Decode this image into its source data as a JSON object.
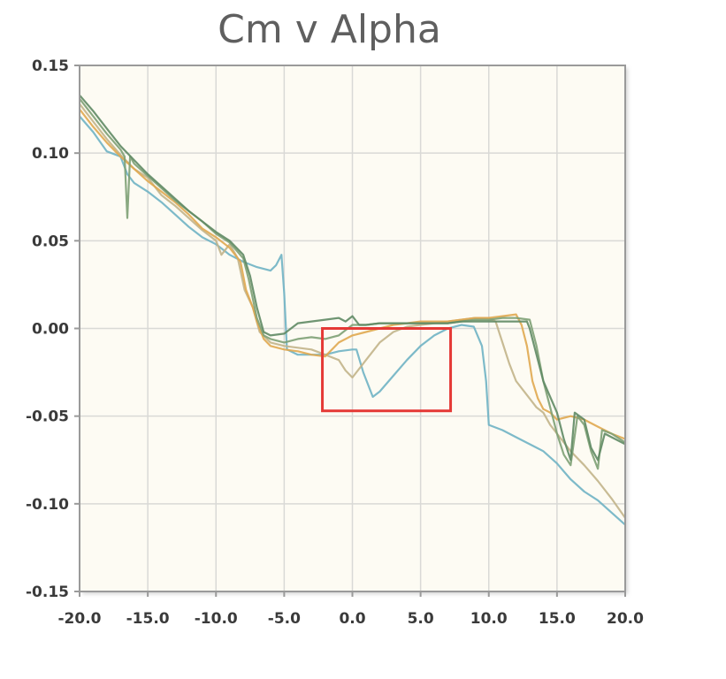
{
  "chart_data": {
    "type": "line",
    "title": "Cm v Alpha",
    "xlabel": "",
    "ylabel": "",
    "xlim": [
      -20,
      20
    ],
    "ylim": [
      -0.15,
      0.15
    ],
    "x_ticks": [
      "-20.0",
      "-15.0",
      "-10.0",
      "-5.0",
      "0.0",
      "5.0",
      "10.0",
      "15.0",
      "20.0"
    ],
    "y_ticks": [
      "0.15",
      "0.10",
      "0.05",
      "0.00",
      "-0.05",
      "-0.10",
      "-0.15"
    ],
    "x_tick_values": [
      -20,
      -15,
      -10,
      -5,
      0,
      5,
      10,
      15,
      20
    ],
    "y_tick_values": [
      0.15,
      0.1,
      0.05,
      0.0,
      -0.05,
      -0.1,
      -0.15
    ],
    "grid": true,
    "background_color": "#fdfbf3",
    "highlight_box": {
      "x": [
        -2.2,
        7.2
      ],
      "y": [
        0.0,
        -0.047
      ],
      "color": "#e53935"
    },
    "series": [
      {
        "color": "#6fb3c4",
        "points": [
          [
            -20,
            0.121
          ],
          [
            -19,
            0.112
          ],
          [
            -18,
            0.101
          ],
          [
            -17,
            0.098
          ],
          [
            -16.5,
            0.088
          ],
          [
            -16,
            0.083
          ],
          [
            -15,
            0.078
          ],
          [
            -14,
            0.072
          ],
          [
            -13,
            0.065
          ],
          [
            -12,
            0.058
          ],
          [
            -11,
            0.052
          ],
          [
            -10,
            0.048
          ],
          [
            -9,
            0.042
          ],
          [
            -8,
            0.038
          ],
          [
            -7,
            0.035
          ],
          [
            -6,
            0.033
          ],
          [
            -5.6,
            0.036
          ],
          [
            -5.2,
            0.042
          ],
          [
            -5,
            0.02
          ],
          [
            -4.8,
            -0.012
          ],
          [
            -4,
            -0.015
          ],
          [
            -3,
            -0.015
          ],
          [
            -2,
            -0.015
          ],
          [
            -1,
            -0.013
          ],
          [
            0,
            -0.012
          ],
          [
            0.3,
            -0.012
          ],
          [
            0.8,
            -0.025
          ],
          [
            1.5,
            -0.039
          ],
          [
            2,
            -0.036
          ],
          [
            3,
            -0.027
          ],
          [
            4,
            -0.018
          ],
          [
            5,
            -0.01
          ],
          [
            6,
            -0.004
          ],
          [
            7,
            0.0
          ],
          [
            8,
            0.002
          ],
          [
            8.9,
            0.001
          ],
          [
            9.5,
            -0.01
          ],
          [
            9.8,
            -0.03
          ],
          [
            10,
            -0.055
          ],
          [
            11,
            -0.058
          ],
          [
            12,
            -0.062
          ],
          [
            13,
            -0.066
          ],
          [
            14,
            -0.07
          ],
          [
            15,
            -0.077
          ],
          [
            16,
            -0.086
          ],
          [
            17,
            -0.093
          ],
          [
            18,
            -0.098
          ],
          [
            19,
            -0.105
          ],
          [
            20,
            -0.112
          ]
        ]
      },
      {
        "color": "#c2b48a",
        "points": [
          [
            -20,
            0.128
          ],
          [
            -19,
            0.118
          ],
          [
            -18,
            0.108
          ],
          [
            -17,
            0.099
          ],
          [
            -16,
            0.091
          ],
          [
            -15,
            0.086
          ],
          [
            -14,
            0.076
          ],
          [
            -13,
            0.07
          ],
          [
            -12,
            0.063
          ],
          [
            -11,
            0.056
          ],
          [
            -10,
            0.05
          ],
          [
            -9.6,
            0.042
          ],
          [
            -9,
            0.048
          ],
          [
            -8.4,
            0.04
          ],
          [
            -7.9,
            0.022
          ],
          [
            -7.3,
            0.012
          ],
          [
            -6.8,
            -0.002
          ],
          [
            -6,
            -0.008
          ],
          [
            -5,
            -0.01
          ],
          [
            -4,
            -0.011
          ],
          [
            -3,
            -0.012
          ],
          [
            -2,
            -0.015
          ],
          [
            -1,
            -0.018
          ],
          [
            -0.5,
            -0.024
          ],
          [
            0,
            -0.028
          ],
          [
            1,
            -0.018
          ],
          [
            2,
            -0.008
          ],
          [
            3,
            -0.002
          ],
          [
            4,
            0.001
          ],
          [
            5,
            0.002
          ],
          [
            6,
            0.003
          ],
          [
            7,
            0.004
          ],
          [
            8,
            0.005
          ],
          [
            9,
            0.006
          ],
          [
            10,
            0.006
          ],
          [
            10.5,
            0.004
          ],
          [
            11,
            -0.008
          ],
          [
            11.5,
            -0.02
          ],
          [
            12,
            -0.03
          ],
          [
            12.5,
            -0.035
          ],
          [
            13,
            -0.04
          ],
          [
            13.5,
            -0.045
          ],
          [
            14,
            -0.048
          ],
          [
            14.5,
            -0.055
          ],
          [
            15,
            -0.06
          ],
          [
            16,
            -0.07
          ],
          [
            17,
            -0.078
          ],
          [
            18,
            -0.087
          ],
          [
            19,
            -0.097
          ],
          [
            20,
            -0.108
          ]
        ]
      },
      {
        "color": "#e0a850",
        "points": [
          [
            -20,
            0.125
          ],
          [
            -19,
            0.115
          ],
          [
            -18,
            0.106
          ],
          [
            -17,
            0.098
          ],
          [
            -16,
            0.091
          ],
          [
            -15,
            0.084
          ],
          [
            -14,
            0.078
          ],
          [
            -13,
            0.072
          ],
          [
            -12,
            0.065
          ],
          [
            -11,
            0.057
          ],
          [
            -10,
            0.052
          ],
          [
            -9,
            0.046
          ],
          [
            -8.2,
            0.038
          ],
          [
            -7.8,
            0.022
          ],
          [
            -7.3,
            0.012
          ],
          [
            -7,
            0.004
          ],
          [
            -6.5,
            -0.006
          ],
          [
            -6,
            -0.01
          ],
          [
            -5,
            -0.012
          ],
          [
            -4,
            -0.013
          ],
          [
            -3,
            -0.015
          ],
          [
            -2,
            -0.016
          ],
          [
            -1,
            -0.008
          ],
          [
            0,
            -0.004
          ],
          [
            1,
            -0.002
          ],
          [
            2,
            0.0
          ],
          [
            3,
            0.002
          ],
          [
            4,
            0.003
          ],
          [
            5,
            0.004
          ],
          [
            6,
            0.004
          ],
          [
            7,
            0.004
          ],
          [
            8,
            0.005
          ],
          [
            9,
            0.006
          ],
          [
            10,
            0.006
          ],
          [
            11,
            0.007
          ],
          [
            12,
            0.008
          ],
          [
            12.4,
            0.002
          ],
          [
            12.8,
            -0.01
          ],
          [
            13.2,
            -0.03
          ],
          [
            13.6,
            -0.04
          ],
          [
            14,
            -0.046
          ],
          [
            14.5,
            -0.048
          ],
          [
            15,
            -0.052
          ],
          [
            16,
            -0.05
          ],
          [
            17,
            -0.052
          ],
          [
            18,
            -0.056
          ],
          [
            19,
            -0.06
          ],
          [
            20,
            -0.063
          ]
        ]
      },
      {
        "color": "#7da074",
        "points": [
          [
            -20,
            0.131
          ],
          [
            -19,
            0.121
          ],
          [
            -18,
            0.111
          ],
          [
            -17,
            0.102
          ],
          [
            -16.7,
            0.098
          ],
          [
            -16.5,
            0.063
          ],
          [
            -16.3,
            0.098
          ],
          [
            -16,
            0.094
          ],
          [
            -15,
            0.087
          ],
          [
            -14,
            0.08
          ],
          [
            -13,
            0.073
          ],
          [
            -12,
            0.067
          ],
          [
            -11,
            0.061
          ],
          [
            -10,
            0.054
          ],
          [
            -9,
            0.049
          ],
          [
            -8,
            0.04
          ],
          [
            -7.6,
            0.028
          ],
          [
            -7,
            0.006
          ],
          [
            -6.5,
            -0.004
          ],
          [
            -6,
            -0.006
          ],
          [
            -5,
            -0.008
          ],
          [
            -4,
            -0.006
          ],
          [
            -3,
            -0.005
          ],
          [
            -2,
            -0.006
          ],
          [
            -1,
            -0.004
          ],
          [
            0,
            0.002
          ],
          [
            1,
            0.002
          ],
          [
            2,
            0.003
          ],
          [
            3,
            0.003
          ],
          [
            4,
            0.003
          ],
          [
            5,
            0.003
          ],
          [
            6,
            0.003
          ],
          [
            7,
            0.003
          ],
          [
            8,
            0.004
          ],
          [
            9,
            0.005
          ],
          [
            10,
            0.005
          ],
          [
            11,
            0.006
          ],
          [
            12,
            0.006
          ],
          [
            13,
            0.005
          ],
          [
            13.5,
            -0.01
          ],
          [
            14,
            -0.03
          ],
          [
            14.5,
            -0.045
          ],
          [
            15,
            -0.06
          ],
          [
            15.5,
            -0.072
          ],
          [
            16,
            -0.078
          ],
          [
            16.5,
            -0.05
          ],
          [
            17,
            -0.055
          ],
          [
            17.5,
            -0.07
          ],
          [
            18,
            -0.08
          ],
          [
            18.3,
            -0.058
          ],
          [
            19,
            -0.06
          ],
          [
            20,
            -0.065
          ]
        ]
      },
      {
        "color": "#5f8a64",
        "points": [
          [
            -20,
            0.133
          ],
          [
            -19,
            0.124
          ],
          [
            -18,
            0.114
          ],
          [
            -17,
            0.104
          ],
          [
            -16,
            0.096
          ],
          [
            -15,
            0.088
          ],
          [
            -14,
            0.081
          ],
          [
            -13,
            0.074
          ],
          [
            -12,
            0.067
          ],
          [
            -11,
            0.061
          ],
          [
            -10,
            0.055
          ],
          [
            -9,
            0.05
          ],
          [
            -8,
            0.042
          ],
          [
            -7.5,
            0.03
          ],
          [
            -7,
            0.012
          ],
          [
            -6.5,
            -0.002
          ],
          [
            -6,
            -0.004
          ],
          [
            -5,
            -0.003
          ],
          [
            -4,
            0.003
          ],
          [
            -3,
            0.004
          ],
          [
            -2,
            0.005
          ],
          [
            -1,
            0.006
          ],
          [
            -0.5,
            0.004
          ],
          [
            0,
            0.007
          ],
          [
            0.5,
            0.002
          ],
          [
            1,
            0.002
          ],
          [
            2,
            0.003
          ],
          [
            3,
            0.003
          ],
          [
            4,
            0.003
          ],
          [
            5,
            0.003
          ],
          [
            6,
            0.003
          ],
          [
            7,
            0.003
          ],
          [
            8,
            0.004
          ],
          [
            9,
            0.004
          ],
          [
            10,
            0.004
          ],
          [
            11,
            0.004
          ],
          [
            12,
            0.004
          ],
          [
            12.8,
            0.004
          ],
          [
            13,
            0.0
          ],
          [
            13.5,
            -0.015
          ],
          [
            14,
            -0.03
          ],
          [
            15,
            -0.048
          ],
          [
            15.5,
            -0.063
          ],
          [
            16,
            -0.075
          ],
          [
            16.3,
            -0.048
          ],
          [
            17,
            -0.052
          ],
          [
            17.5,
            -0.068
          ],
          [
            18,
            -0.075
          ],
          [
            18.5,
            -0.06
          ],
          [
            19,
            -0.062
          ],
          [
            20,
            -0.066
          ]
        ]
      }
    ]
  }
}
